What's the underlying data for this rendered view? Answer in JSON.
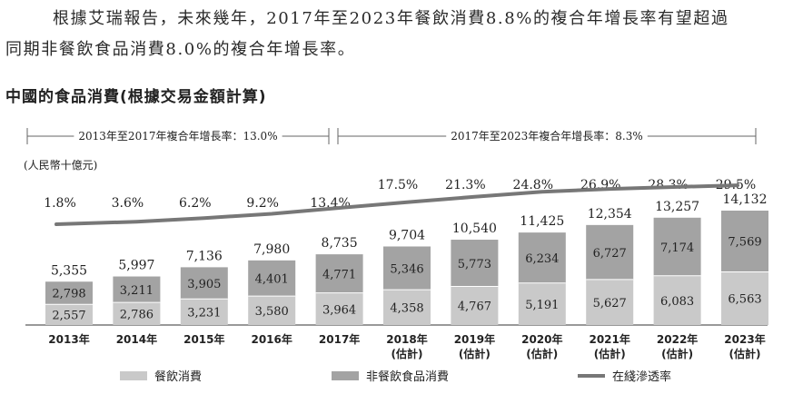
{
  "text": {
    "para_line1": "根據艾瑞報告，未來幾年，2017年至2023年餐飲消費8.8%的複合年增長率有望超過",
    "para_line2": "同期非餐飲食品消費8.0%的複合年增長率。"
  },
  "chart_data": {
    "type": "bar",
    "stacked": true,
    "title": "中國的食品消費(根據交易金額計算)",
    "unit_label": "(人民幣十億元)",
    "categories": [
      "2013年",
      "2014年",
      "2015年",
      "2016年",
      "2017年",
      "2018年",
      "2019年",
      "2020年",
      "2021年",
      "2022年",
      "2023年"
    ],
    "category_notes": [
      "",
      "",
      "",
      "",
      "",
      "(估計)",
      "(估計)",
      "(估計)",
      "(估計)",
      "(估計)",
      "(估計)"
    ],
    "series": [
      {
        "name": "餐飲消費",
        "color": "#c9c9c9",
        "values": [
          2557,
          2786,
          3231,
          3580,
          3964,
          4358,
          4767,
          5191,
          5627,
          6083,
          6563
        ]
      },
      {
        "name": "非餐飲食品消費",
        "color": "#a3a3a3",
        "values": [
          2798,
          3211,
          3905,
          4401,
          4771,
          5346,
          5773,
          6234,
          6727,
          7174,
          7569
        ]
      }
    ],
    "totals": [
      "5,355",
      "5,997",
      "7,136",
      "7,980",
      "8,735",
      "9,704",
      "10,540",
      "11,425",
      "12,354",
      "13,257",
      "14,132"
    ],
    "line_series": {
      "name": "在綫滲透率",
      "color": "#777777",
      "values": [
        1.8,
        3.6,
        6.2,
        9.2,
        13.4,
        17.5,
        21.3,
        24.8,
        26.9,
        28.3,
        29.5
      ],
      "labels": [
        "1.8%",
        "3.6%",
        "6.2%",
        "9.2%",
        "13.4%",
        "17.5%",
        "21.3%",
        "24.8%",
        "26.9%",
        "28.3%",
        "29.5%"
      ]
    },
    "span_annotations": [
      {
        "text": "2013年至2017年複合年增長率：13.0%",
        "from": "2013年",
        "to": "2017年"
      },
      {
        "text": "2017年至2023年複合年增長率：8.3%",
        "from": "2017年",
        "to": "2023年"
      }
    ],
    "ylim": [
      0,
      14132
    ],
    "grid": false,
    "legend_position": "bottom"
  }
}
